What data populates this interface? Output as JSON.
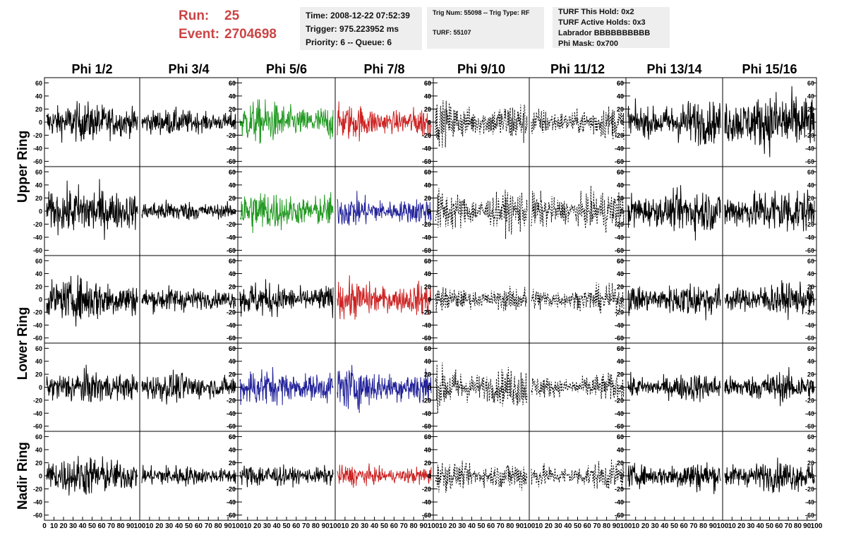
{
  "header": {
    "run_label": "Run:",
    "run_value": "25",
    "event_label": "Event:",
    "event_value": "2704698",
    "time_box": {
      "time": "Time: 2008-12-22 07:52:39",
      "trigger": "Trigger: 975.223952 ms",
      "priority": "Priority: 6 -- Queue: 6"
    },
    "trig_box": {
      "trig": "Trig Num: 55098 -- Trig Type: RF",
      "turf": "TURF: 55107"
    },
    "turf_box": {
      "hold": "TURF This Hold: 0x2",
      "active": "TURF Active Holds: 0x3",
      "labrador": "Labrador BBBBBBBBBB",
      "phimask": "Phi Mask: 0x700"
    }
  },
  "chart_data": {
    "type": "line",
    "columns": [
      "Phi 1/2",
      "Phi 3/4",
      "Phi 5/6",
      "Phi 7/8",
      "Phi 9/10",
      "Phi 11/12",
      "Phi 13/14",
      "Phi 15/16"
    ],
    "rows": [
      {
        "label": "Upper Ring",
        "span": 2
      },
      {
        "label": "Lower Ring",
        "span": 2
      },
      {
        "label": "Nadir Ring",
        "span": 1
      }
    ],
    "ylim": [
      -68,
      68
    ],
    "yticks": [
      -60,
      -40,
      -20,
      0,
      20,
      40,
      60
    ],
    "xlim": [
      0,
      100
    ],
    "xticks": [
      0,
      10,
      20,
      30,
      40,
      50,
      60,
      70,
      80,
      90,
      100
    ],
    "colors": {
      "black": "#000000",
      "green": "#229922",
      "red": "#cc2222",
      "blue": "#222299"
    },
    "panel_colors": [
      [
        "black",
        "black",
        "green",
        "red",
        "black",
        "black",
        "black",
        "black"
      ],
      [
        "black",
        "black",
        "green",
        "blue",
        "black",
        "black",
        "black",
        "black"
      ],
      [
        "black",
        "black",
        "black",
        "red",
        "black",
        "black",
        "black",
        "black"
      ],
      [
        "black",
        "black",
        "blue",
        "blue",
        "black",
        "black",
        "black",
        "black"
      ],
      [
        "black",
        "black",
        "black",
        "red",
        "black",
        "black",
        "black",
        "black"
      ]
    ],
    "dashed_columns": [
      4,
      5
    ],
    "amplitudes": [
      [
        17,
        12,
        22,
        20,
        25,
        18,
        22,
        28
      ],
      [
        22,
        10,
        22,
        18,
        25,
        22,
        22,
        22
      ],
      [
        20,
        12,
        18,
        22,
        15,
        15,
        18,
        15
      ],
      [
        15,
        14,
        20,
        25,
        25,
        15,
        14,
        14
      ],
      [
        18,
        10,
        12,
        12,
        18,
        15,
        15,
        14
      ]
    ]
  }
}
